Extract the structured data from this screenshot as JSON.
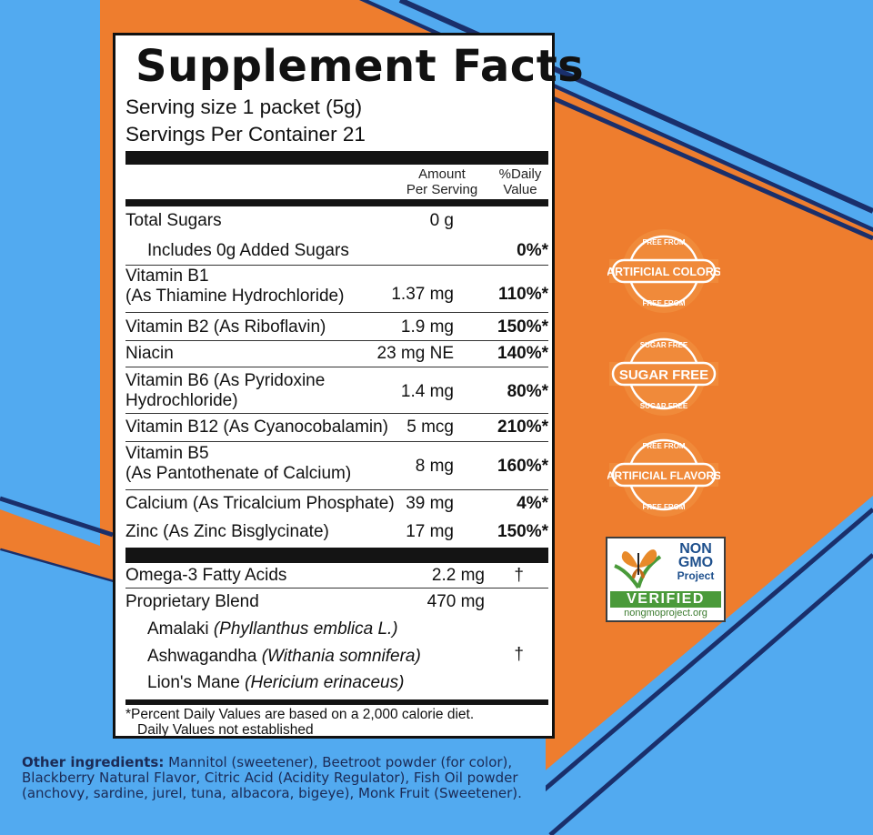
{
  "label": {
    "title": "Supplement Facts",
    "serving_size": "Serving size 1 packet (5g)",
    "servings_per_container": "Servings Per Container 21",
    "header_amount_1": "Amount",
    "header_amount_2": "Per Serving",
    "header_dv_1": "%Daily",
    "header_dv_2": "Value",
    "rows": [
      {
        "name": "Total Sugars",
        "amount": "0 g",
        "dv": ""
      },
      {
        "name": "Includes 0g Added Sugars",
        "amount": "",
        "dv": "0%*"
      },
      {
        "name_1": "Vitamin B1",
        "name_2": "(As Thiamine Hydrochloride)",
        "amount": "1.37 mg",
        "dv": "110%*"
      },
      {
        "name": "Vitamin B2 (As Riboflavin)",
        "amount": "1.9 mg",
        "dv": "150%*"
      },
      {
        "name": "Niacin",
        "amount": "23 mg NE",
        "dv": "140%*"
      },
      {
        "name_1": "Vitamin B6 (As Pyridoxine",
        "name_2": "Hydrochloride)",
        "amount": "1.4 mg",
        "dv": "80%*"
      },
      {
        "name": "Vitamin B12 (As Cyanocobalamin)",
        "amount": "5 mcg",
        "dv": "210%*"
      },
      {
        "name_1": "Vitamin B5",
        "name_2": "(As Pantothenate of Calcium)",
        "amount": "8 mg",
        "dv": "160%*"
      },
      {
        "name": "Calcium (As Tricalcium Phosphate)",
        "amount": "39 mg",
        "dv": "4%*"
      },
      {
        "name": "Zinc (As Zinc Bisglycinate)",
        "amount": "17 mg",
        "dv": "150%*"
      }
    ],
    "omega": {
      "name": "Omega-3 Fatty Acids",
      "amount": "2.2 mg",
      "dv": "†"
    },
    "blend": {
      "name": "Proprietary Blend",
      "amount": "470 mg",
      "dv": "†",
      "items": [
        {
          "common": "Amalaki",
          "latin": "(Phyllanthus emblica L.)"
        },
        {
          "common": "Ashwagandha",
          "latin": "(Withania somnifera)"
        },
        {
          "common": "Lion's Mane",
          "latin": "(Hericium erinaceus)"
        }
      ]
    },
    "footnote_1": "*Percent Daily Values are based on a 2,000 calorie diet.",
    "footnote_2": "Daily Values not established"
  },
  "other_ingredients": {
    "label": "Other ingredients:",
    "text": " Mannitol (sweetener), Beetroot powder (for color), Blackberry Natural Flavor, Citric Acid (Acidity Regulator), Fish Oil powder (anchovy, sardine, jurel, tuna, albacora, bigeye), Monk Fruit (Sweetener)."
  },
  "badges": [
    {
      "top": "FREE FROM",
      "main": "ARTIFICIAL COLORS",
      "bottom": "FREE FROM"
    },
    {
      "top": "SUGAR FREE",
      "main": "SUGAR FREE",
      "bottom": "SUGAR FREE"
    },
    {
      "top": "FREE FROM",
      "main": "ARTIFICIAL FLAVORS",
      "bottom": "FREE FROM"
    }
  ],
  "nongmo": {
    "line1": "NON",
    "line2": "GMO",
    "line3": "Project",
    "verified": "VERIFIED",
    "url": "nongmoproject.org"
  },
  "colors": {
    "orange": "#ee7d2e",
    "blue": "#52aaf0",
    "navy": "#1a2f6b",
    "badge_orange": "#f08a3a"
  }
}
